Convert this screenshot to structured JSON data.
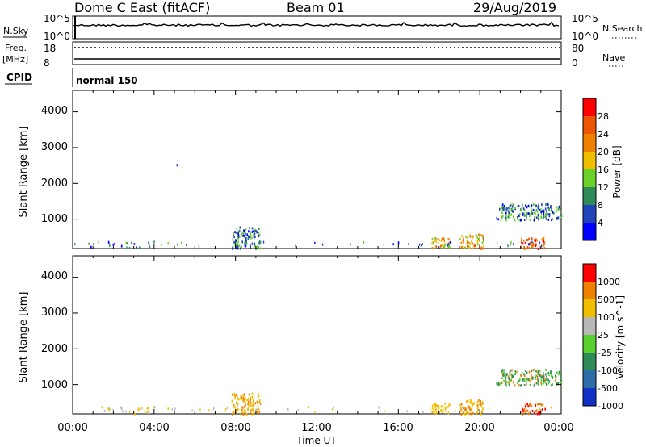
{
  "header": {
    "radar": "Dome C East (fitACF)",
    "beam": "Beam 01",
    "date": "29/Aug/2019"
  },
  "top_panel": {
    "left_label": "N.Sky",
    "left_ticks": [
      "10^5",
      "10^0"
    ],
    "right_ticks": [
      "10^5",
      "10^0"
    ],
    "right_label": "N.Search"
  },
  "freq_panel": {
    "left_label_1": "Freq.",
    "left_label_2": "[MHz]",
    "left_ticks": [
      "18",
      "8"
    ],
    "right_ticks": [
      "80",
      "0"
    ],
    "right_label": "Nave"
  },
  "cpid": {
    "label": "CPID",
    "value": "normal 150"
  },
  "x_axis": {
    "ticks": [
      "00:00",
      "04:00",
      "08:00",
      "12:00",
      "16:00",
      "20:00",
      "00:00"
    ],
    "label": "Time UT"
  },
  "power_panel": {
    "ylabel": "Slant Range [km]",
    "yticks": [
      "4000",
      "3000",
      "2000",
      "1000"
    ],
    "colorbar_label": "Power [dB]",
    "colorbar_ticks": [
      "28",
      "24",
      "20",
      "16",
      "12",
      "8",
      "4"
    ],
    "colors": [
      "#0000ff",
      "#2244bb",
      "#2e8b57",
      "#6ad02a",
      "#f0c000",
      "#f08000",
      "#ee5500",
      "#ff0000"
    ]
  },
  "velocity_panel": {
    "ylabel": "Slant Range [km]",
    "yticks": [
      "4000",
      "3000",
      "2000",
      "1000"
    ],
    "colorbar_label": "Velocity [m s^-1]",
    "colorbar_ticks": [
      "1000",
      "500",
      "100",
      "25",
      "-25",
      "-100",
      "-500",
      "-1000"
    ],
    "colors": [
      "#1030c8",
      "#2e6ea8",
      "#2e8b57",
      "#5ad030",
      "#b8b8b8",
      "#f0c000",
      "#f08000",
      "#ff0000"
    ]
  },
  "chart_data": [
    {
      "type": "heatmap",
      "title": "Power [dB]",
      "xlabel": "Time UT",
      "ylabel": "Slant Range [km]",
      "xlim": [
        0,
        24
      ],
      "ylim": [
        180,
        4600
      ],
      "clim": [
        0,
        32
      ],
      "x_unit": "hours UT",
      "clusters": [
        {
          "t": [
            0.6,
            4.8
          ],
          "range": [
            180,
            400
          ],
          "level": "low-mid"
        },
        {
          "t": [
            7.8,
            9.2
          ],
          "range": [
            200,
            800
          ],
          "level": "low-mid"
        },
        {
          "t": [
            5.0,
            5.1
          ],
          "range": [
            2500,
            2600
          ],
          "level": "low"
        },
        {
          "t": [
            17.6,
            18.5
          ],
          "range": [
            200,
            500
          ],
          "level": "mid-high"
        },
        {
          "t": [
            19.0,
            20.2
          ],
          "range": [
            200,
            600
          ],
          "level": "mid-high"
        },
        {
          "t": [
            20.8,
            24.0
          ],
          "range": [
            1000,
            1450
          ],
          "level": "low-mid"
        },
        {
          "t": [
            22.0,
            23.2
          ],
          "range": [
            200,
            500
          ],
          "level": "high"
        }
      ]
    },
    {
      "type": "heatmap",
      "title": "Velocity [m s^-1]",
      "xlabel": "Time UT",
      "ylabel": "Slant Range [km]",
      "xlim": [
        0,
        24
      ],
      "ylim": [
        180,
        4600
      ],
      "clim": [
        -1000,
        1000
      ],
      "x_unit": "hours UT",
      "clusters": [
        {
          "t": [
            0.6,
            4.8
          ],
          "range": [
            180,
            400
          ],
          "level": "-25 to -100"
        },
        {
          "t": [
            7.8,
            9.2
          ],
          "range": [
            200,
            800
          ],
          "level": "-100 to -500"
        },
        {
          "t": [
            17.6,
            18.5
          ],
          "range": [
            200,
            500
          ],
          "level": "-100"
        },
        {
          "t": [
            19.0,
            20.2
          ],
          "range": [
            200,
            600
          ],
          "level": "-100 to -500"
        },
        {
          "t": [
            20.8,
            24.0
          ],
          "range": [
            1000,
            1450
          ],
          "level": "100 to 25"
        },
        {
          "t": [
            22.0,
            23.2
          ],
          "range": [
            200,
            500
          ],
          "level": "-500 to -1000"
        }
      ]
    }
  ]
}
